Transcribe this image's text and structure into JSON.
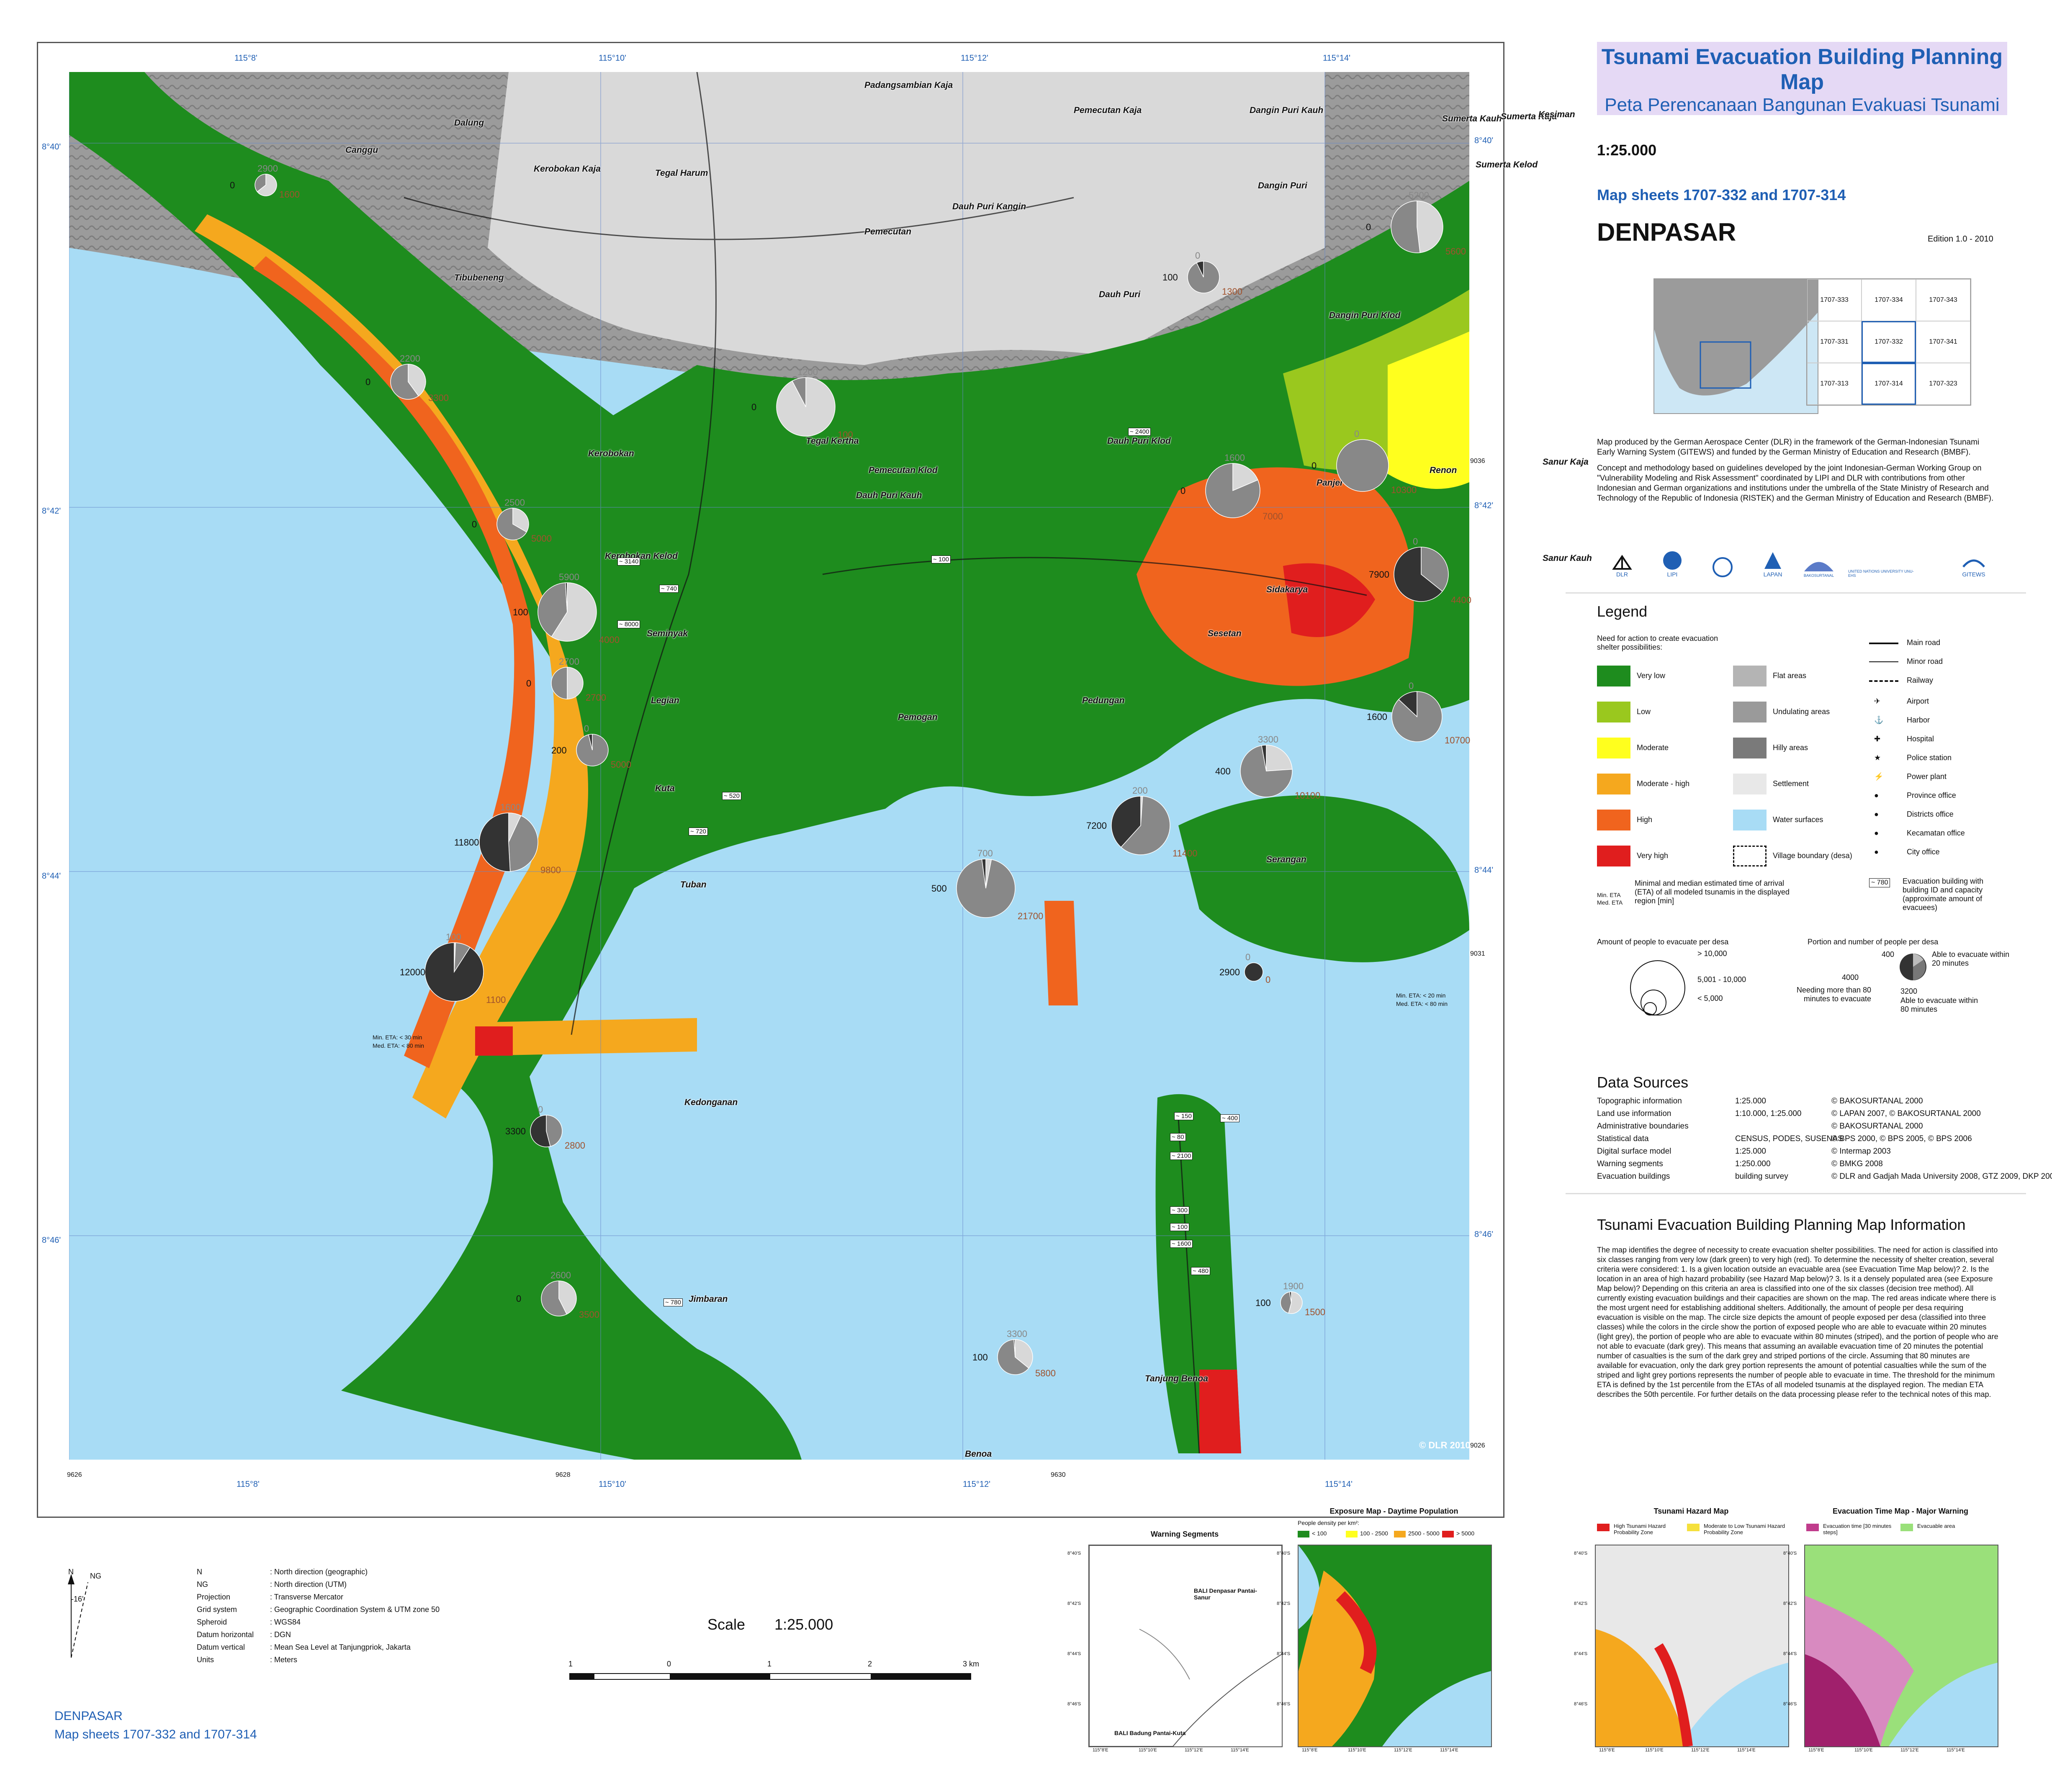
{
  "title": {
    "en": "Tsunami Evacuation Building Planning Map",
    "id": "Peta Perencanaan Bangunan Evakuasi Tsunami"
  },
  "scale": "1:25.000",
  "map_sheets": "Map sheets 1707-332 and 1707-314",
  "city": "DENPASAR",
  "edition": "Edition 1.0   -   2010",
  "sheet_grid": [
    "1707-333",
    "1707-334",
    "1707-343",
    "1707-331",
    "1707-332",
    "1707-341",
    "1707-313",
    "1707-314",
    "1707-323"
  ],
  "credits": {
    "p1": "Map produced by the German Aerospace Center (DLR) in the framework of the German-Indonesian Tsunami Early Warning System (GITEWS) and funded by the German Ministry of Education and Research (BMBF).",
    "p2": "Concept and methodology based on guidelines developed by the joint Indonesian-German Working Group on \"Vulnerability Modeling and Risk Assessment\" coordinated by LIPI and DLR with contributions from other Indonesian and German organizations and institutions under the umbrella of the State Ministry of Research and Technology of the Republic of Indonesia (RISTEK) and the German Ministry of Education and Research (BMBF)."
  },
  "logos": [
    "DLR",
    "LIPI",
    "",
    "LAPAN",
    "BAKOSURTANAL",
    "UNITED NATIONS UNIVERSITY UNU-EHS",
    "GITEWS"
  ],
  "legend": {
    "title": "Legend",
    "need_title": "Need for action to create evacuation shelter possibilities:",
    "classes": [
      {
        "label": "Very low",
        "color": "#1e8c1e"
      },
      {
        "label": "Low",
        "color": "#9ac81e"
      },
      {
        "label": "Moderate",
        "color": "#ffff1e"
      },
      {
        "label": "Moderate - high",
        "color": "#f5a81e"
      },
      {
        "label": "High",
        "color": "#f0641e"
      },
      {
        "label": "Very high",
        "color": "#e01e1e"
      }
    ],
    "land": [
      {
        "label": "Flat areas",
        "color": "#b4b4b4"
      },
      {
        "label": "Undulating areas",
        "color": "#9a9a9a"
      },
      {
        "label": "Hilly areas",
        "color": "#7a7a7a"
      },
      {
        "label": "Settlement",
        "color": "#e8e8e8"
      },
      {
        "label": "Water surfaces",
        "color": "#a8dcf5"
      },
      {
        "label": "Village boundary (desa)",
        "color": "#ffffff"
      }
    ],
    "lines": [
      "Main road",
      "Minor road",
      "Railway"
    ],
    "symbols": [
      "Airport",
      "Harbor",
      "Hospital",
      "Police station",
      "Power plant",
      "Province office",
      "Districts office",
      "Kecamatan office",
      "City office"
    ],
    "building_text": "Evacuation building with building ID and capacity (approximate amount of evacuees)",
    "building_example": "~ 780",
    "eta_label_min": "Min. ETA",
    "eta_label_med": "Med. ETA",
    "eta_text": "Minimal and median estimated time of arrival (ETA) of all modeled tsunamis in the displayed region [min]",
    "amount_title": "Amount of people to evacuate per desa",
    "amount_scale": [
      "> 10,000",
      "5,001 - 10,000",
      "< 5,000"
    ],
    "portion_title": "Portion and number of people per desa",
    "portion_example": {
      "top": "400",
      "top_text": "Able to evacuate within 20 minutes",
      "left": "4000",
      "left_text": "Needing more than 80 minutes to evacuate",
      "bottom": "3200",
      "bottom_text": "Able to evacuate within 80 minutes"
    }
  },
  "data_sources": {
    "title": "Data Sources",
    "rows": [
      {
        "name": "Topographic information",
        "scale": "1:25.000",
        "source": "© BAKOSURTANAL 2000"
      },
      {
        "name": "Land use information",
        "scale": "1:10.000, 1:25.000",
        "source": "© LAPAN 2007, © BAKOSURTANAL 2000"
      },
      {
        "name": "Administrative boundaries",
        "scale": "",
        "source": "© BAKOSURTANAL 2000"
      },
      {
        "name": "Statistical data",
        "scale": "CENSUS, PODES, SUSENAS",
        "source": "© BPS 2000, © BPS 2005, © BPS 2006"
      },
      {
        "name": "Digital surface model",
        "scale": "1:25.000",
        "source": "© Intermap 2003"
      },
      {
        "name": "Warning segments",
        "scale": "1:250.000",
        "source": "© BMKG 2008"
      },
      {
        "name": "Evacuation buildings",
        "scale": "building survey",
        "source": "© DLR and Gadjah Mada University 2008, GTZ 2009, DKP 2008"
      }
    ]
  },
  "info": {
    "title": "Tsunami Evacuation Building Planning Map Information",
    "text": "The map identifies  the degree of necessity to create evacuation shelter possibilities. The need for action is classified into six classes ranging from very low (dark green) to very high (red). To determine the necessity of shelter creation, several criteria were considered: 1. Is a given location outside an evacuable area (see Evacuation Time Map below)? 2. Is the location in an area of high hazard probability (see Hazard Map below)? 3. Is it a densely populated area (see Exposure Map below)? Depending on this criteria an area is classified into one of the six classes (decision tree method). All currently existing evacuation buildings and their capacities are shown on the map. The red areas indicate where there is the most urgent need for establishing additional shelters. Additionally, the amount of people per desa requiring evacuation is visible on the map. The circle size depicts the amount of people exposed per desa (classified into three classes) while the colors in the circle show the portion of exposed people who are able to evacuate within 20 minutes (light grey), the portion of people who are able to evacuate within 80 minutes (striped), and the portion of people who are not able to evacuate (dark grey). This means that assuming an available evacuation time of 20 minutes the potential number of casualties is the sum of the dark grey and striped portions of the circle. Assuming that 80 minutes are available for evacuation, only the dark grey portion represents the amount of potential casualties while the sum of the striped and light grey portions represents the number of people able to evacuate in time. The threshold for the minimum ETA is defined by the 1st percentile from the ETAs of all modeled tsunamis at the displayed region. The median ETA describes the 50th percentile. For further details on the data processing please refer to the technical notes of this map."
  },
  "insets": {
    "warning": {
      "title": "Warning Segments",
      "labels": [
        "BALI Denpasar Pantai-Sanur",
        "BALI Badung Pantai-Kuta"
      ]
    },
    "exposure": {
      "title": "Exposure Map - Daytime Population",
      "sub": "People density per km²:",
      "classes": [
        "< 100",
        "100 - 2500",
        "2500 - 5000",
        "> 5000"
      ]
    },
    "hazard": {
      "title": "Tsunami Hazard Map",
      "classes": [
        "High Tsunami Hazard Probability Zone",
        "Moderate to Low Tsunami Hazard Probability Zone"
      ]
    },
    "evac": {
      "title": "Evacuation Time Map - Major Warning",
      "classes": [
        "Evacuation time [30 minutes steps]",
        "Evacuable area"
      ]
    },
    "lat_ticks": [
      "8°40'S",
      "8°42'S",
      "8°44'S",
      "8°46'S"
    ],
    "lon_ticks": [
      "115°8'E",
      "115°10'E",
      "115°12'E",
      "115°14'E"
    ]
  },
  "map": {
    "top_ticks": [
      "115°8'",
      "115°10'",
      "115°12'",
      "115°14'"
    ],
    "bottom_ticks": [
      "115°8'",
      "115°10'",
      "115°12'",
      "115°14'"
    ],
    "left_ticks": [
      "8°40'",
      "8°42'",
      "8°44'",
      "8°46'"
    ],
    "right_ticks": [
      "8°40'",
      "8°42'",
      "8°44'",
      "8°46'"
    ],
    "utm_bottom": [
      "9626",
      "9628",
      "9630"
    ],
    "utm_right": [
      "9036",
      "9031",
      "9026"
    ],
    "copyright": "© DLR 2010",
    "eta_left": [
      "Min. ETA: < 30 min",
      "Med. ETA: < 80 min"
    ],
    "eta_right": [
      "Min. ETA: < 20 min",
      "Med. ETA: < 80 min"
    ],
    "places": [
      "Padangsambian Kaja",
      "Pemecutan Kaja",
      "Dangin Puri Kauh",
      "Sumerta Kauh",
      "Sumerta Kaja",
      "Kesiman",
      "Dalung",
      "Canggu",
      "Kerobokan Kaja",
      "Tegal Harum",
      "Dangin Puri",
      "Sumerta Kelod",
      "Dauh Puri Kangin",
      "Pemecutan",
      "Tibubeneng",
      "Dauh Puri",
      "Dangin Puri Klod",
      "Kerobokan",
      "Tegal Kertha",
      "Dauh Puri Klod",
      "Pemecutan Klod",
      "Dauh Puri Kauh",
      "Panjer",
      "Renon",
      "Sanur Kaja",
      "Sanur Kauh",
      "Kerobokan Kelod",
      "Seminyak",
      "Sesetan",
      "Sidakarya",
      "Legian",
      "Pedungan",
      "Pemogan",
      "Kuta",
      "Serangan",
      "Tuban",
      "Kedonganan",
      "Jimbaran",
      "Tanjung Benoa",
      "Benoa"
    ],
    "pies": [
      {
        "a": "2900",
        "b": "0",
        "c": "1600"
      },
      {
        "a": "2200",
        "b": "0",
        "c": "3300"
      },
      {
        "a": "2500",
        "b": "0",
        "c": "5000"
      },
      {
        "a": "5900",
        "b": "100",
        "c": "4000"
      },
      {
        "a": "2700",
        "b": "0",
        "c": "2700"
      },
      {
        "a": "0",
        "b": "200",
        "c": "5000"
      },
      {
        "a": "1600",
        "b": "11800",
        "c": "9800"
      },
      {
        "a": "100",
        "b": "12000",
        "c": "1100"
      },
      {
        "a": "0",
        "b": "3300",
        "c": "2800"
      },
      {
        "a": "2600",
        "b": "0",
        "c": "3500"
      },
      {
        "a": "3300",
        "b": "100",
        "c": "5800"
      },
      {
        "a": "700",
        "b": "500",
        "c": "21700"
      },
      {
        "a": "200",
        "b": "7200",
        "c": "11400"
      },
      {
        "a": "3300",
        "b": "400",
        "c": "10100"
      },
      {
        "a": "0",
        "b": "2900",
        "c": "0"
      },
      {
        "a": "1900",
        "b": "100",
        "c": "1500"
      },
      {
        "a": "0",
        "b": "1600",
        "c": "10700"
      },
      {
        "a": "0",
        "b": "7900",
        "c": "4400"
      },
      {
        "a": "1600",
        "b": "0",
        "c": "7000"
      },
      {
        "a": "0",
        "b": "0",
        "c": "10300"
      },
      {
        "a": "5200",
        "b": "0",
        "c": "5600"
      },
      {
        "a": "0",
        "b": "100",
        "c": "1300"
      },
      {
        "a": "1200",
        "b": "0",
        "c": "100"
      }
    ],
    "buildings": [
      "~ 2400",
      "~ 3140",
      "~ 740",
      "~ 8000",
      "~ 100",
      "~ 520",
      "~ 720",
      "~ 780",
      "~ 150",
      "~ 400",
      "~ 80",
      "~ 2100",
      "~ 300",
      "~ 100",
      "~ 1600",
      "~ 480"
    ]
  },
  "bottom": {
    "north": "N",
    "ng": "NG",
    "angle": "-16'",
    "notes": [
      {
        "k": "N",
        "v": "North direction (geographic)"
      },
      {
        "k": "NG",
        "v": "North direction (UTM)"
      },
      {
        "k": "Projection",
        "v": "Transverse Mercator"
      },
      {
        "k": "Grid system",
        "v": "Geographic Coordination System & UTM zone 50"
      },
      {
        "k": "Spheroid",
        "v": "WGS84"
      },
      {
        "k": "Datum horizontal",
        "v": "DGN"
      },
      {
        "k": "Datum vertical",
        "v": "Mean Sea Level at Tanjungpriok, Jakarta"
      },
      {
        "k": "Units",
        "v": "Meters"
      }
    ],
    "scale_label": "Scale",
    "scale_value": "1:25.000",
    "scalebar": [
      "1",
      "0",
      "1",
      "2",
      "3 km"
    ],
    "footer1": "DENPASAR",
    "footer2": "Map sheets 1707-332 and 1707-314"
  }
}
